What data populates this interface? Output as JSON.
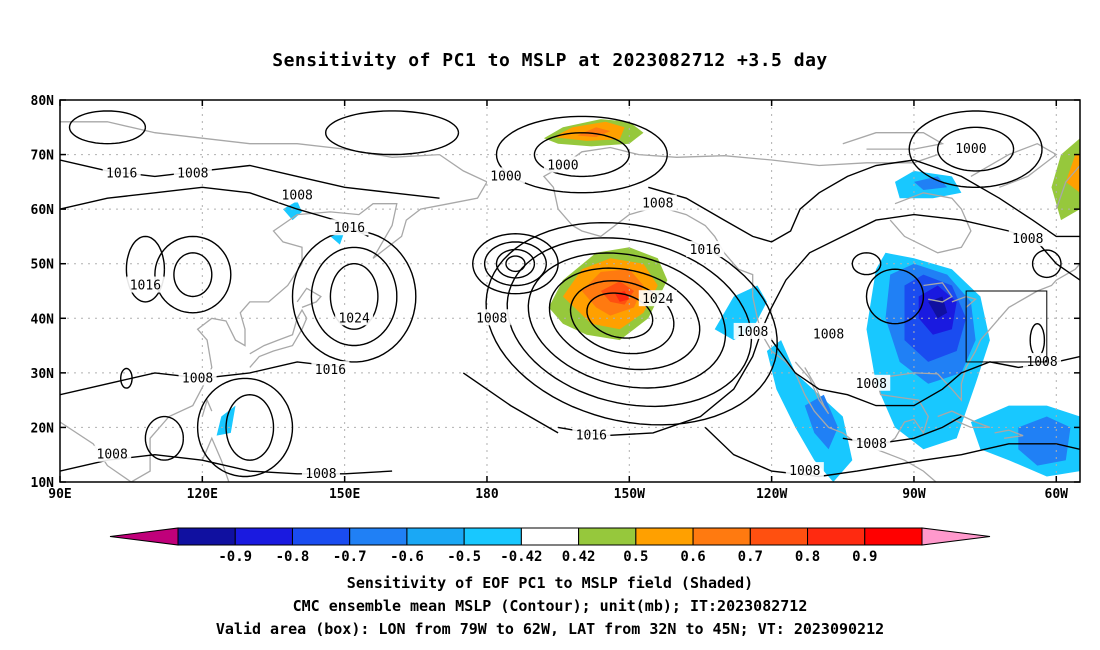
{
  "title": "Sensitivity of PC1 to MSLP at 2023082712 +3.5 day",
  "map": {
    "lon_range": [
      90,
      305
    ],
    "lat_range": [
      10,
      80
    ],
    "lon_ticks": [
      {
        "lon": 90,
        "label": "90E"
      },
      {
        "lon": 120,
        "label": "120E"
      },
      {
        "lon": 150,
        "label": "150E"
      },
      {
        "lon": 180,
        "label": "180"
      },
      {
        "lon": 210,
        "label": "150W"
      },
      {
        "lon": 240,
        "label": "120W"
      },
      {
        "lon": 270,
        "label": "90W"
      },
      {
        "lon": 300,
        "label": "60W"
      }
    ],
    "lat_ticks": [
      {
        "lat": 80,
        "label": "80N"
      },
      {
        "lat": 70,
        "label": "70N"
      },
      {
        "lat": 60,
        "label": "60N"
      },
      {
        "lat": 50,
        "label": "50N"
      },
      {
        "lat": 40,
        "label": "40N"
      },
      {
        "lat": 30,
        "label": "30N"
      },
      {
        "lat": 20,
        "label": "20N"
      },
      {
        "lat": 10,
        "label": "10N"
      }
    ],
    "valid_box": {
      "lon_min": 281,
      "lon_max": 298,
      "lat_min": 32,
      "lat_max": 45
    },
    "contour_labels": [
      {
        "text": "1016",
        "lon": 103,
        "lat": 66.5
      },
      {
        "text": "1008",
        "lon": 118,
        "lat": 66.5
      },
      {
        "text": "1008",
        "lon": 140,
        "lat": 62.5
      },
      {
        "text": "1016",
        "lon": 151,
        "lat": 56.5
      },
      {
        "text": "1016",
        "lon": 108,
        "lat": 46
      },
      {
        "text": "1024",
        "lon": 152,
        "lat": 40
      },
      {
        "text": "1016",
        "lon": 147,
        "lat": 30.5
      },
      {
        "text": "1008",
        "lon": 119,
        "lat": 29
      },
      {
        "text": "1008",
        "lon": 101,
        "lat": 15
      },
      {
        "text": "1008",
        "lon": 145,
        "lat": 11.5
      },
      {
        "text": "1000",
        "lon": 196,
        "lat": 68
      },
      {
        "text": "1000",
        "lon": 184,
        "lat": 66
      },
      {
        "text": "1008",
        "lon": 181,
        "lat": 40
      },
      {
        "text": "1024",
        "lon": 216,
        "lat": 43.5
      },
      {
        "text": "1008",
        "lon": 216,
        "lat": 61
      },
      {
        "text": "1016",
        "lon": 226,
        "lat": 52.5
      },
      {
        "text": "1016",
        "lon": 202,
        "lat": 18.5
      },
      {
        "text": "1008",
        "lon": 236,
        "lat": 37.5
      },
      {
        "text": "1008",
        "lon": 252,
        "lat": 37
      },
      {
        "text": "1008",
        "lon": 261,
        "lat": 28
      },
      {
        "text": "1008",
        "lon": 261,
        "lat": 17
      },
      {
        "text": "1008",
        "lon": 247,
        "lat": 12
      },
      {
        "text": "1000",
        "lon": 282,
        "lat": 71
      },
      {
        "text": "1008",
        "lon": 294,
        "lat": 54.5
      },
      {
        "text": "1008",
        "lon": 297,
        "lat": 32
      }
    ],
    "colors": {
      "contour": "#000000",
      "coast": "#a8a8a8",
      "grid": "#b0b0b0"
    }
  },
  "colorbar": {
    "colors": [
      "#c0007a",
      "#1010a0",
      "#1a1ae0",
      "#1a4cf0",
      "#2080f5",
      "#1aa8f5",
      "#18c8ff",
      "#ffffff",
      "#96c83c",
      "#ffa000",
      "#ff7a10",
      "#ff5010",
      "#ff2a10",
      "#ff0000",
      "#ff99cc"
    ],
    "labels": [
      "-0.9",
      "-0.8",
      "-0.7",
      "-0.6",
      "-0.5",
      "-0.42",
      "0.42",
      "0.5",
      "0.6",
      "0.7",
      "0.8",
      "0.9"
    ]
  },
  "captions": {
    "line1": "Sensitivity of EOF PC1 to MSLP field (Shaded)",
    "line2": "CMC ensemble mean MSLP (Contour); unit(mb); IT:2023082712",
    "line3": "Valid area (box): LON from 79W to 62W, LAT from 32N to 45N; VT: 2023090212"
  }
}
